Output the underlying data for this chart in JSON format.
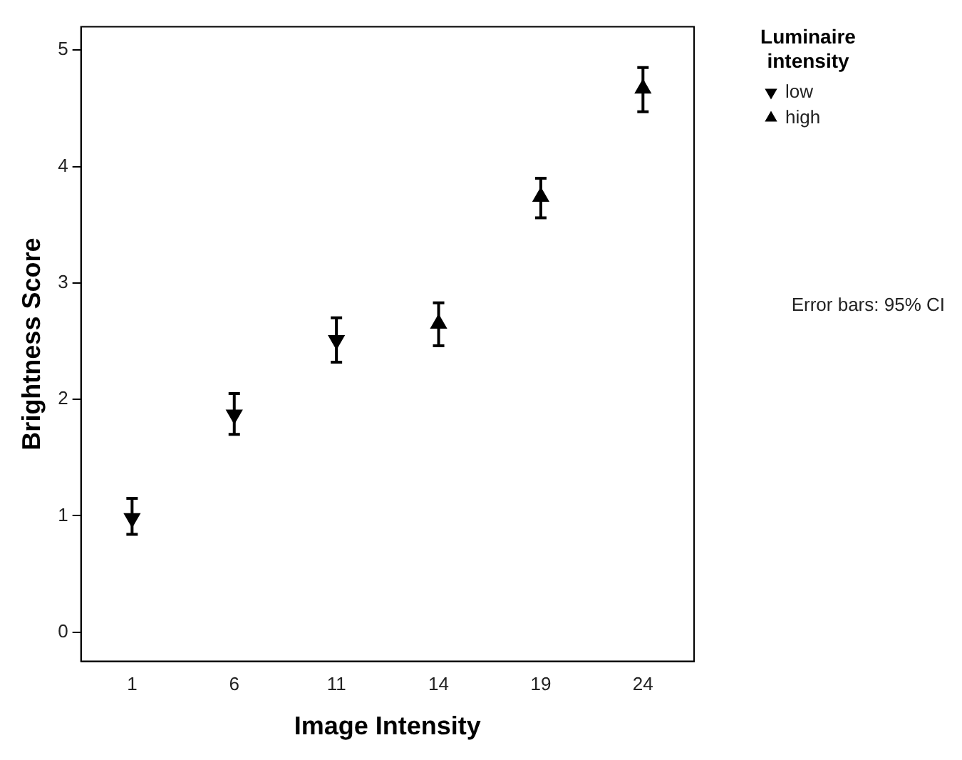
{
  "chart_data": {
    "type": "scatter",
    "xlabel": "Image Intensity",
    "ylabel": "Brightness Score",
    "legend_title": "Luminaire intensity",
    "categories": [
      "1",
      "6",
      "11",
      "14",
      "19",
      "24"
    ],
    "series": [
      {
        "name": "low",
        "color": "#000000",
        "marker": "triangle_down",
        "values": [
          0.98,
          1.87,
          2.51,
          null,
          null,
          null
        ],
        "errors": [
          [
            0.84,
            1.15
          ],
          [
            1.7,
            2.05
          ],
          [
            2.32,
            2.7
          ],
          null,
          null,
          null
        ]
      },
      {
        "name": "high",
        "color": "#000000",
        "marker": "triangle",
        "values": [
          null,
          null,
          null,
          2.65,
          3.74,
          4.67
        ],
        "errors": [
          null,
          null,
          null,
          [
            2.46,
            2.83
          ],
          [
            3.56,
            3.9
          ],
          [
            4.47,
            4.85
          ]
        ]
      }
    ],
    "ylim": [
      -0.25,
      5.2
    ],
    "yticks": [
      0,
      1,
      2,
      3,
      4,
      5
    ],
    "grid": false,
    "legend": "right",
    "annotations": [
      "Error bars: 95% CI"
    ]
  }
}
